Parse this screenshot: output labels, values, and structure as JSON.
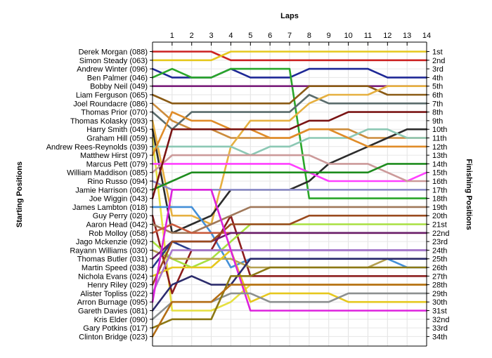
{
  "chart_data": {
    "type": "line",
    "title": "",
    "xlabel": "Laps",
    "ylabel_left": "Starting Positions",
    "ylabel_right": "Finishing Positions",
    "x": [
      0,
      1,
      2,
      3,
      4,
      5,
      6,
      7,
      8,
      9,
      10,
      11,
      12,
      13,
      14
    ],
    "x_tick_labels": [
      "1",
      "2",
      "3",
      "4",
      "5",
      "6",
      "7",
      "8",
      "9",
      "10",
      "11",
      "12",
      "13",
      "14"
    ],
    "position_labels": [
      "1st",
      "2nd",
      "3rd",
      "4th",
      "5th",
      "6th",
      "7th",
      "8th",
      "9th",
      "10th",
      "11th",
      "12th",
      "13th",
      "14th",
      "15th",
      "16th",
      "17th",
      "18th",
      "19th",
      "20th",
      "21st",
      "22nd",
      "23rd",
      "24th",
      "25th",
      "26th",
      "27th",
      "28th",
      "29th",
      "30th",
      "31st",
      "32nd",
      "33rd",
      "34th"
    ],
    "drivers": [
      "Derek Morgan (088)",
      "Simon Steady (063)",
      "Andrew Winter (096)",
      "Ben Palmer (046)",
      "Bobby Neil (049)",
      "Liam Ferguson (065)",
      "Joel Roundacre (086)",
      "Thomas Prior (070)",
      "Thomas Kolasky (093)",
      "Harry Smith (045)",
      "Graham Hill (059)",
      "Andrew Rees-Reynolds (039)",
      "Matthew Hirst (097)",
      "Marcus Pett (079)",
      "William Maddison (085)",
      "Rino Russo (094)",
      "Jamie Harrison (062)",
      "Joe Wiggin (043)",
      "James Lambton (018)",
      "Guy Perry (020)",
      "Aaron Head (042)",
      "Rob Molloy (058)",
      "Jago Mckenzie (092)",
      "Rayann Williams (030)",
      "Thomas Butler (031)",
      "Martin Speed (038)",
      "Nichola Evans (024)",
      "Henry Riley (029)",
      "Alister Topliss (022)",
      "Arron Burnage (095)",
      "Gareth Davies (081)",
      "Kris Elder (090)",
      "Gary Potkins (017)",
      "Clinton Bridge (023)"
    ],
    "series": [
      {
        "color": "#cc2222",
        "values": [
          1,
          1,
          1,
          1,
          2,
          2,
          2,
          2,
          2,
          2,
          2,
          2,
          2,
          2,
          2
        ]
      },
      {
        "color": "#e6c81e",
        "values": [
          2,
          2,
          2,
          2,
          1,
          1,
          1,
          1,
          1,
          1,
          1,
          1,
          1,
          1,
          1
        ]
      },
      {
        "color": "#1e2896",
        "values": [
          3,
          4,
          4,
          4,
          3,
          4,
          4,
          4,
          3,
          3,
          3,
          3,
          4,
          4,
          4
        ]
      },
      {
        "color": "#2aa62a",
        "values": [
          4,
          3,
          4,
          4,
          3,
          3,
          3,
          3,
          18,
          18,
          18,
          18,
          18,
          18,
          18
        ]
      },
      {
        "color": "#7a1e7a",
        "values": [
          5,
          5,
          5,
          5,
          5,
          5,
          5,
          5,
          5,
          5,
          5,
          5,
          5,
          5,
          5
        ]
      },
      {
        "color": "#8a5a14",
        "values": [
          6,
          7,
          7,
          7,
          7,
          7,
          7,
          7,
          5,
          5,
          5,
          5,
          6,
          6,
          6
        ]
      },
      {
        "color": "#cc8c3c",
        "values": [
          7,
          9,
          10,
          10,
          11,
          11,
          11,
          11,
          10,
          10,
          10,
          11,
          11,
          11,
          11
        ]
      },
      {
        "color": "#5a6c6c",
        "values": [
          8,
          10,
          8,
          8,
          8,
          8,
          8,
          8,
          6,
          7,
          7,
          7,
          7,
          7,
          7
        ]
      },
      {
        "color": "#e6b040",
        "values": [
          9,
          20,
          20,
          21,
          12,
          9,
          9,
          9,
          7,
          6,
          6,
          6,
          5,
          5,
          5
        ]
      },
      {
        "color": "#2c2c2c",
        "values": [
          10,
          22,
          21,
          20,
          17,
          17,
          17,
          17,
          16,
          14,
          13,
          12,
          11,
          10,
          10
        ]
      },
      {
        "color": "#e6e040",
        "values": [
          11,
          31,
          31,
          31,
          30,
          28,
          28,
          28,
          28,
          28,
          28,
          28,
          28,
          28,
          28
        ]
      },
      {
        "color": "#8cc8b4",
        "values": [
          12,
          12,
          12,
          12,
          12,
          13,
          12,
          12,
          11,
          11,
          11,
          10,
          10,
          11,
          11
        ]
      },
      {
        "color": "#e08c28",
        "values": [
          13,
          8,
          9,
          9,
          10,
          10,
          11,
          11,
          10,
          10,
          11,
          12,
          12,
          12,
          12
        ]
      },
      {
        "color": "#ff40ff",
        "values": [
          14,
          14,
          14,
          14,
          14,
          14,
          14,
          14,
          15,
          16,
          16,
          16,
          16,
          16,
          15
        ]
      },
      {
        "color": "#cc9a9a",
        "values": [
          15,
          13,
          13,
          13,
          13,
          13,
          13,
          13,
          13,
          14,
          14,
          14,
          15,
          16,
          16
        ]
      },
      {
        "color": "#8c8cc8",
        "values": [
          16,
          17,
          17,
          17,
          17,
          17,
          17,
          17,
          17,
          17,
          17,
          17,
          17,
          17,
          17
        ]
      },
      {
        "color": "#1e8c1e",
        "values": [
          17,
          16,
          15,
          15,
          15,
          15,
          15,
          15,
          15,
          15,
          15,
          15,
          14,
          14,
          14
        ]
      },
      {
        "color": "#7a1414",
        "values": [
          18,
          10,
          10,
          10,
          10,
          10,
          10,
          10,
          9,
          9,
          8,
          8,
          8,
          8,
          8
        ]
      },
      {
        "color": "#4490d8",
        "values": [
          19,
          19,
          19,
          22,
          26,
          25,
          25,
          25,
          25,
          25,
          25,
          25,
          25,
          26,
          26
        ]
      },
      {
        "color": "#8c1e1e",
        "values": [
          20,
          29,
          24,
          24,
          20,
          27,
          27,
          27,
          27,
          27,
          27,
          27,
          27,
          27,
          27
        ]
      },
      {
        "color": "#a0785a",
        "values": [
          21,
          22,
          22,
          21,
          20,
          19,
          19,
          19,
          19,
          19,
          19,
          19,
          19,
          19,
          19
        ]
      },
      {
        "color": "#c85a3c",
        "values": [
          22,
          21,
          22,
          22,
          22,
          22,
          22,
          22,
          22,
          22,
          22,
          22,
          22,
          22,
          22
        ]
      },
      {
        "color": "#a8e040",
        "values": [
          23,
          25,
          26,
          25,
          23,
          21,
          21,
          21,
          21,
          21,
          21,
          21,
          21,
          21,
          21
        ]
      },
      {
        "color": "#b4a050",
        "values": [
          24,
          25,
          25,
          25,
          25,
          26,
          26,
          26,
          26,
          26,
          26,
          26,
          25,
          25,
          25
        ]
      },
      {
        "color": "#6a1e6a",
        "values": [
          25,
          23,
          23,
          23,
          22,
          22,
          22,
          22,
          22,
          22,
          22,
          22,
          22,
          22,
          22
        ]
      },
      {
        "color": "#283c8c",
        "values": [
          26,
          23,
          24,
          24,
          24,
          24,
          24,
          24,
          24,
          24,
          24,
          24,
          24,
          24,
          24
        ]
      },
      {
        "color": "#e6c81e",
        "values": [
          27,
          26,
          26,
          26,
          24,
          30,
          29,
          29,
          29,
          29,
          30,
          30,
          30,
          30,
          30
        ]
      },
      {
        "color": "#9a4a1e",
        "values": [
          28,
          23,
          23,
          23,
          21,
          21,
          21,
          21,
          20,
          20,
          20,
          20,
          20,
          20,
          20
        ]
      },
      {
        "color": "#aa78cc",
        "values": [
          29,
          24,
          24,
          24,
          24,
          24,
          24,
          24,
          24,
          24,
          24,
          24,
          24,
          24,
          24
        ]
      },
      {
        "color": "#dd22dd",
        "values": [
          30,
          17,
          17,
          17,
          24,
          31,
          31,
          31,
          31,
          31,
          31,
          31,
          31,
          31,
          31
        ]
      },
      {
        "color": "#2c2c6c",
        "values": [
          31,
          28,
          27,
          28,
          28,
          25,
          25,
          25,
          25,
          25,
          25,
          25,
          25,
          25,
          25
        ]
      },
      {
        "color": "#8c9090",
        "values": [
          32,
          30,
          30,
          30,
          29,
          29,
          30,
          30,
          30,
          30,
          29,
          29,
          29,
          29,
          29
        ]
      },
      {
        "color": "#8c7814",
        "values": [
          33,
          32,
          32,
          32,
          27,
          27,
          26,
          26,
          26,
          26,
          26,
          26,
          26,
          26,
          26
        ]
      },
      {
        "color": "#b46e14",
        "values": [
          34,
          30,
          30,
          30,
          28,
          28,
          28,
          28,
          28,
          28,
          28,
          28,
          28,
          28,
          28
        ]
      }
    ]
  }
}
